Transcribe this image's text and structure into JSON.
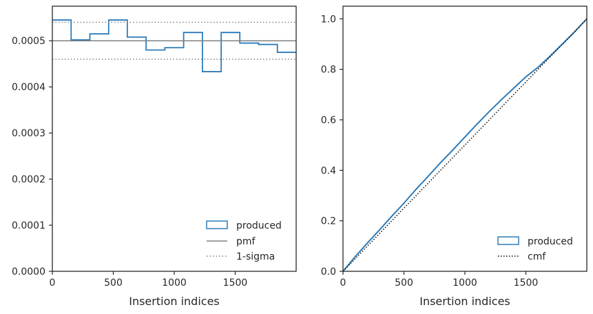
{
  "colors": {
    "produced": "#2b7bb9",
    "pmf": "#808080",
    "sigma": "#808080",
    "cmf": "#000000",
    "axes": "#262626"
  },
  "chart_data": [
    {
      "type": "histogram",
      "xlabel": "Insertion indices",
      "ylabel": "",
      "xlim": [
        0,
        2000
      ],
      "ylim": [
        0,
        0.000575
      ],
      "xticks": [
        0,
        500,
        1000,
        1500
      ],
      "xtick_labels": [
        "0",
        "500",
        "1000",
        "1500"
      ],
      "yticks": [
        0,
        0.0001,
        0.0002,
        0.0003,
        0.0004,
        0.0005
      ],
      "ytick_labels": [
        "0.0000",
        "0.0001",
        "0.0002",
        "0.0003",
        "0.0004",
        "0.0005"
      ],
      "bin_edges": [
        0,
        154,
        308,
        462,
        615,
        769,
        923,
        1077,
        1231,
        1385,
        1538,
        1692,
        1846,
        2000
      ],
      "series": [
        {
          "name": "produced",
          "style": "step",
          "values": [
            0.000545,
            0.000502,
            0.000515,
            0.000545,
            0.000508,
            0.00048,
            0.000485,
            0.000518,
            0.000433,
            0.000518,
            0.000495,
            0.000492,
            0.000475
          ]
        },
        {
          "name": "pmf",
          "style": "hline",
          "value": 0.0005
        },
        {
          "name": "1-sigma",
          "style": "hline-dotted",
          "values": [
            0.00054,
            0.00046
          ]
        }
      ],
      "legend": {
        "location": "lower-right",
        "entries": [
          "produced",
          "pmf",
          "1-sigma"
        ]
      }
    },
    {
      "type": "line",
      "xlabel": "Insertion indices",
      "ylabel": "",
      "xlim": [
        0,
        2000
      ],
      "ylim": [
        0,
        1.05
      ],
      "xticks": [
        0,
        500,
        1000,
        1500
      ],
      "xtick_labels": [
        "0",
        "500",
        "1000",
        "1500"
      ],
      "yticks": [
        0,
        0.2,
        0.4,
        0.6,
        0.8,
        1.0
      ],
      "ytick_labels": [
        "0.0",
        "0.2",
        "0.4",
        "0.6",
        "0.8",
        "1.0"
      ],
      "series": [
        {
          "name": "produced",
          "style": "line",
          "x": [
            0,
            100,
            200,
            300,
            400,
            500,
            600,
            700,
            800,
            900,
            1000,
            1100,
            1200,
            1300,
            1400,
            1500,
            1600,
            1700,
            1800,
            1900,
            2000
          ],
          "y": [
            0,
            0.058,
            0.112,
            0.164,
            0.218,
            0.27,
            0.325,
            0.377,
            0.43,
            0.48,
            0.532,
            0.583,
            0.633,
            0.68,
            0.725,
            0.77,
            0.808,
            0.853,
            0.9,
            0.948,
            1.0
          ]
        },
        {
          "name": "cmf",
          "style": "dotted",
          "x": [
            0,
            2000
          ],
          "y": [
            0,
            1.0
          ]
        }
      ],
      "legend": {
        "location": "lower-right",
        "entries": [
          "produced",
          "cmf"
        ]
      }
    }
  ]
}
